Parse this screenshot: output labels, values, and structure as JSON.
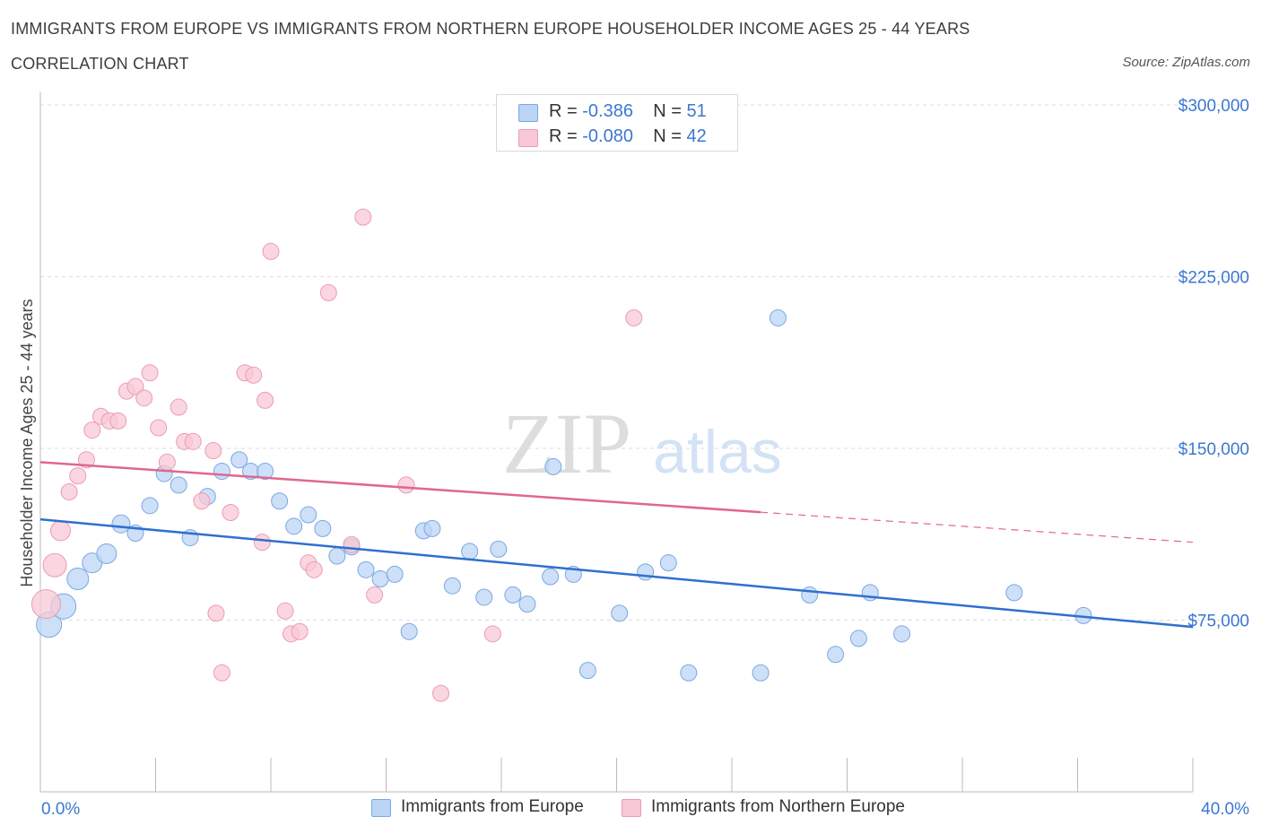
{
  "header": {
    "title": "IMMIGRANTS FROM EUROPE VS IMMIGRANTS FROM NORTHERN EUROPE HOUSEHOLDER INCOME AGES 25 - 44 YEARS",
    "subtitle": "CORRELATION CHART",
    "source": "Source: ZipAtlas.com"
  },
  "watermark": {
    "zip": "ZIP",
    "atlas": "atlas"
  },
  "legend": {
    "rows": [
      {
        "r_label": "R = ",
        "r_value": "-0.386",
        "n_label": "N = ",
        "n_value": "51"
      },
      {
        "r_label": "R = ",
        "r_value": "-0.080",
        "n_label": "N = ",
        "n_value": "42"
      }
    ]
  },
  "bottom_legend": {
    "items": [
      {
        "label": "Immigrants from Europe"
      },
      {
        "label": "Immigrants from Northern Europe"
      }
    ]
  },
  "chart_data": {
    "type": "scatter",
    "title": "IMMIGRANTS FROM EUROPE VS IMMIGRANTS FROM NORTHERN EUROPE HOUSEHOLDER INCOME AGES 25 - 44 YEARS",
    "xlabel": "",
    "ylabel": "Householder Income Ages 25 - 44 years",
    "xlim": [
      0,
      40
    ],
    "ylim": [
      0,
      300000
    ],
    "x_tick_labels": [
      "0.0%",
      "40.0%"
    ],
    "y_ticks": [
      75000,
      150000,
      225000,
      300000
    ],
    "y_tick_labels": [
      "$75,000",
      "$150,000",
      "$225,000",
      "$300,000"
    ],
    "grid": true,
    "legend_position": "top-center",
    "colors": {
      "europe_fill": "#bcd5f5",
      "europe_stroke": "#7aa7e3",
      "europe_line": "#2f6fd0",
      "northern_fill": "#f8c8d6",
      "northern_stroke": "#ec9bb4",
      "northern_line": "#e0678f",
      "axis_text": "#3b78d0"
    },
    "series": [
      {
        "name": "Immigrants from Europe",
        "r": -0.386,
        "n": 51,
        "trend": {
          "x0": 0,
          "y0": 119000,
          "x1": 40,
          "y1": 72000,
          "solid_to_x": 40
        },
        "points": [
          [
            0.3,
            73000,
            14
          ],
          [
            0.8,
            81000,
            14
          ],
          [
            1.3,
            93000,
            12
          ],
          [
            1.8,
            100000,
            11
          ],
          [
            2.3,
            104000,
            11
          ],
          [
            2.8,
            117000,
            10
          ],
          [
            3.3,
            113000,
            9
          ],
          [
            3.8,
            125000,
            9
          ],
          [
            4.3,
            139000,
            9
          ],
          [
            4.8,
            134000,
            9
          ],
          [
            5.2,
            111000,
            9
          ],
          [
            5.8,
            129000,
            9
          ],
          [
            6.3,
            140000,
            9
          ],
          [
            6.9,
            145000,
            9
          ],
          [
            7.3,
            140000,
            9
          ],
          [
            7.8,
            140000,
            9
          ],
          [
            8.3,
            127000,
            9
          ],
          [
            8.8,
            116000,
            9
          ],
          [
            9.3,
            121000,
            9
          ],
          [
            9.8,
            115000,
            9
          ],
          [
            10.3,
            103000,
            9
          ],
          [
            10.8,
            107000,
            9
          ],
          [
            11.3,
            97000,
            9
          ],
          [
            11.8,
            93000,
            9
          ],
          [
            12.3,
            95000,
            9
          ],
          [
            12.8,
            70000,
            9
          ],
          [
            13.3,
            114000,
            9
          ],
          [
            13.6,
            115000,
            9
          ],
          [
            14.3,
            90000,
            9
          ],
          [
            14.9,
            105000,
            9
          ],
          [
            15.4,
            85000,
            9
          ],
          [
            15.9,
            106000,
            9
          ],
          [
            16.4,
            86000,
            9
          ],
          [
            16.9,
            82000,
            9
          ],
          [
            17.7,
            94000,
            9
          ],
          [
            17.8,
            142000,
            9
          ],
          [
            18.5,
            95000,
            9
          ],
          [
            19.0,
            53000,
            9
          ],
          [
            20.1,
            78000,
            9
          ],
          [
            21.0,
            96000,
            9
          ],
          [
            21.8,
            100000,
            9
          ],
          [
            22.5,
            52000,
            9
          ],
          [
            25.0,
            52000,
            9
          ],
          [
            25.6,
            207000,
            9
          ],
          [
            26.7,
            86000,
            9
          ],
          [
            27.6,
            60000,
            9
          ],
          [
            28.4,
            67000,
            9
          ],
          [
            28.8,
            87000,
            9
          ],
          [
            29.9,
            69000,
            9
          ],
          [
            33.8,
            87000,
            9
          ],
          [
            36.2,
            77000,
            9
          ]
        ]
      },
      {
        "name": "Immigrants from Northern Europe",
        "r": -0.08,
        "n": 42,
        "trend": {
          "x0": 0,
          "y0": 144000,
          "x1": 40,
          "y1": 109000,
          "solid_to_x": 25
        },
        "points": [
          [
            0.2,
            82000,
            16
          ],
          [
            0.5,
            99000,
            13
          ],
          [
            0.7,
            114000,
            11
          ],
          [
            1.0,
            131000,
            9
          ],
          [
            1.3,
            138000,
            9
          ],
          [
            1.6,
            145000,
            9
          ],
          [
            1.8,
            158000,
            9
          ],
          [
            2.1,
            164000,
            9
          ],
          [
            2.4,
            162000,
            9
          ],
          [
            2.7,
            162000,
            9
          ],
          [
            3.0,
            175000,
            9
          ],
          [
            3.3,
            177000,
            9
          ],
          [
            3.6,
            172000,
            9
          ],
          [
            3.8,
            183000,
            9
          ],
          [
            4.1,
            159000,
            9
          ],
          [
            4.4,
            144000,
            9
          ],
          [
            4.8,
            168000,
            9
          ],
          [
            5.0,
            153000,
            9
          ],
          [
            5.3,
            153000,
            9
          ],
          [
            5.6,
            127000,
            9
          ],
          [
            6.0,
            149000,
            9
          ],
          [
            6.1,
            78000,
            9
          ],
          [
            6.3,
            52000,
            9
          ],
          [
            6.6,
            122000,
            9
          ],
          [
            7.1,
            183000,
            9
          ],
          [
            7.4,
            182000,
            9
          ],
          [
            7.7,
            109000,
            9
          ],
          [
            7.8,
            171000,
            9
          ],
          [
            8.0,
            236000,
            9
          ],
          [
            8.5,
            79000,
            9
          ],
          [
            8.7,
            69000,
            9
          ],
          [
            9.0,
            70000,
            9
          ],
          [
            9.3,
            100000,
            9
          ],
          [
            9.5,
            97000,
            9
          ],
          [
            10.0,
            218000,
            9
          ],
          [
            10.8,
            108000,
            9
          ],
          [
            11.2,
            251000,
            9
          ],
          [
            11.6,
            86000,
            9
          ],
          [
            12.7,
            134000,
            9
          ],
          [
            13.9,
            43000,
            9
          ],
          [
            15.7,
            69000,
            9
          ],
          [
            20.6,
            207000,
            9
          ]
        ]
      }
    ]
  }
}
